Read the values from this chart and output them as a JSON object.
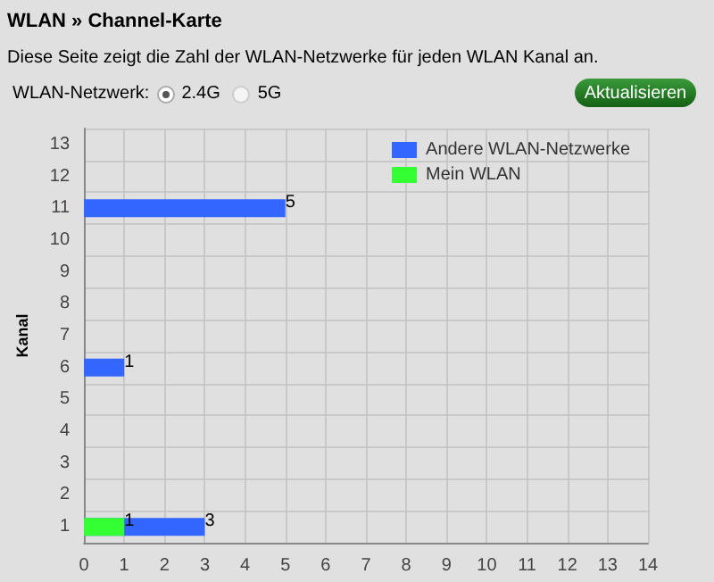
{
  "chart_data": {
    "type": "bar",
    "orientation": "horizontal",
    "title": "WLAN » Channel-Karte",
    "subtitle": "Diese Seite zeigt die Zahl der WLAN-Netzwerke für jeden WLAN Kanal an.",
    "annotations": [
      "WLAN-Netzwerk:",
      "2.4G",
      "5G",
      "Aktualisieren"
    ],
    "ylabel": "Kanal",
    "categories": [
      "13",
      "12",
      "11",
      "10",
      "9",
      "8",
      "7",
      "6",
      "5",
      "4",
      "3",
      "2",
      "1"
    ],
    "series": [
      {
        "name": "Andere WLAN-Netzwerke",
        "color": "#3366ff",
        "values": [
          0,
          0,
          5,
          0,
          0,
          0,
          0,
          1,
          0,
          0,
          0,
          0,
          3
        ],
        "value_labels": [
          null,
          null,
          "5",
          null,
          null,
          null,
          null,
          "1",
          null,
          null,
          null,
          null,
          "3"
        ]
      },
      {
        "name": "Mein WLAN",
        "color": "#33ff33",
        "values": [
          0,
          0,
          0,
          0,
          0,
          0,
          0,
          0,
          0,
          0,
          0,
          0,
          1
        ],
        "value_labels": [
          null,
          null,
          null,
          null,
          null,
          null,
          null,
          null,
          null,
          null,
          null,
          null,
          "1"
        ]
      }
    ],
    "xlim": [
      0,
      14
    ],
    "xticks": [
      0,
      1,
      2,
      3,
      4,
      5,
      6,
      7,
      8,
      9,
      10,
      11,
      12,
      13,
      14
    ],
    "grid": true,
    "legend": "top right"
  }
}
